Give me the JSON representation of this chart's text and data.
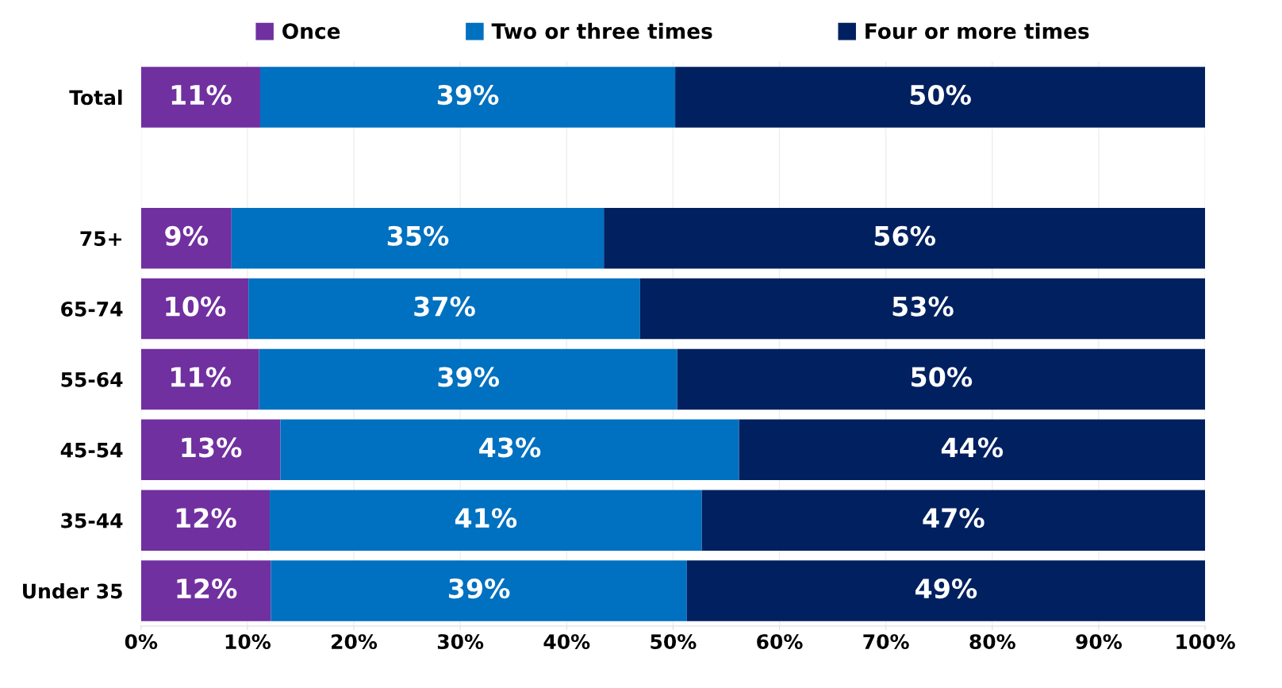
{
  "chart_data": {
    "type": "bar",
    "orientation": "horizontal",
    "stacked": true,
    "categories": [
      "Total",
      null,
      "75+",
      "65-74",
      "55-64",
      "45-54",
      "35-44",
      "Under 35"
    ],
    "series": [
      {
        "name": "Once",
        "color": "#7030a0",
        "values": [
          11.2,
          null,
          8.5,
          10.1,
          11.1,
          13.1,
          12.1,
          12.2
        ],
        "value_labels": [
          "11%",
          null,
          "9%",
          "10%",
          "11%",
          "13%",
          "12%",
          "12%"
        ]
      },
      {
        "name": "Two or three times",
        "color": "#0070c0",
        "values": [
          39.0,
          null,
          35.0,
          36.8,
          39.3,
          43.1,
          40.6,
          39.1
        ],
        "value_labels": [
          "39%",
          null,
          "35%",
          "37%",
          "39%",
          "43%",
          "41%",
          "39%"
        ]
      },
      {
        "name": "Four or more times",
        "color": "#002060",
        "values": [
          49.8,
          null,
          56.5,
          53.1,
          49.6,
          43.8,
          47.3,
          48.7
        ],
        "value_labels": [
          "50%",
          null,
          "56%",
          "53%",
          "50%",
          "44%",
          "47%",
          "49%"
        ]
      }
    ],
    "xlim": [
      0,
      100
    ],
    "xticks": [
      {
        "value": 0,
        "label": "0%"
      },
      {
        "value": 10,
        "label": "10%"
      },
      {
        "value": 20,
        "label": "20%"
      },
      {
        "value": 30,
        "label": "30%"
      },
      {
        "value": 40,
        "label": "40%"
      },
      {
        "value": 50,
        "label": "50%"
      },
      {
        "value": 60,
        "label": "60%"
      },
      {
        "value": 70,
        "label": "70%"
      },
      {
        "value": 80,
        "label": "80%"
      },
      {
        "value": 90,
        "label": "90%"
      },
      {
        "value": 100,
        "label": "100%"
      }
    ],
    "grid": "x",
    "legend": "top"
  }
}
